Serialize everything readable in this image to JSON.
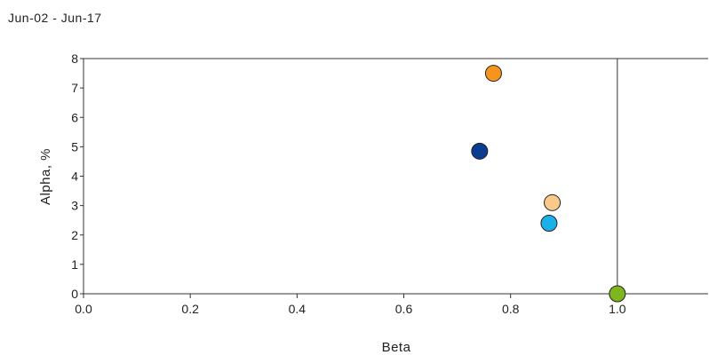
{
  "header": {
    "date_range": "Jun-02 - Jun-17"
  },
  "chart_data": {
    "type": "scatter",
    "title": "",
    "xlabel": "Beta",
    "ylabel": "Alpha, %",
    "xlim": [
      0.0,
      1.17
    ],
    "ylim": [
      0,
      8
    ],
    "x_ticks": [
      0.0,
      0.2,
      0.4,
      0.6,
      0.8,
      1.0
    ],
    "x_tick_labels": [
      "0.0",
      "0.2",
      "0.4",
      "0.6",
      "0.8",
      "1.0"
    ],
    "y_ticks": [
      0,
      1,
      2,
      3,
      4,
      5,
      6,
      7,
      8
    ],
    "y_tick_labels": [
      "0",
      "1",
      "2",
      "3",
      "4",
      "5",
      "6",
      "7",
      "8"
    ],
    "reference_line_x": 1.0,
    "grid": false,
    "points": [
      {
        "x": 0.768,
        "y": 7.5,
        "color": "#f7941d"
      },
      {
        "x": 0.742,
        "y": 4.85,
        "color": "#0a3d91"
      },
      {
        "x": 0.878,
        "y": 3.1,
        "color": "#f9c98a"
      },
      {
        "x": 0.872,
        "y": 2.4,
        "color": "#1ab0e8"
      },
      {
        "x": 1.0,
        "y": 0.0,
        "color": "#7fb51e"
      }
    ]
  }
}
